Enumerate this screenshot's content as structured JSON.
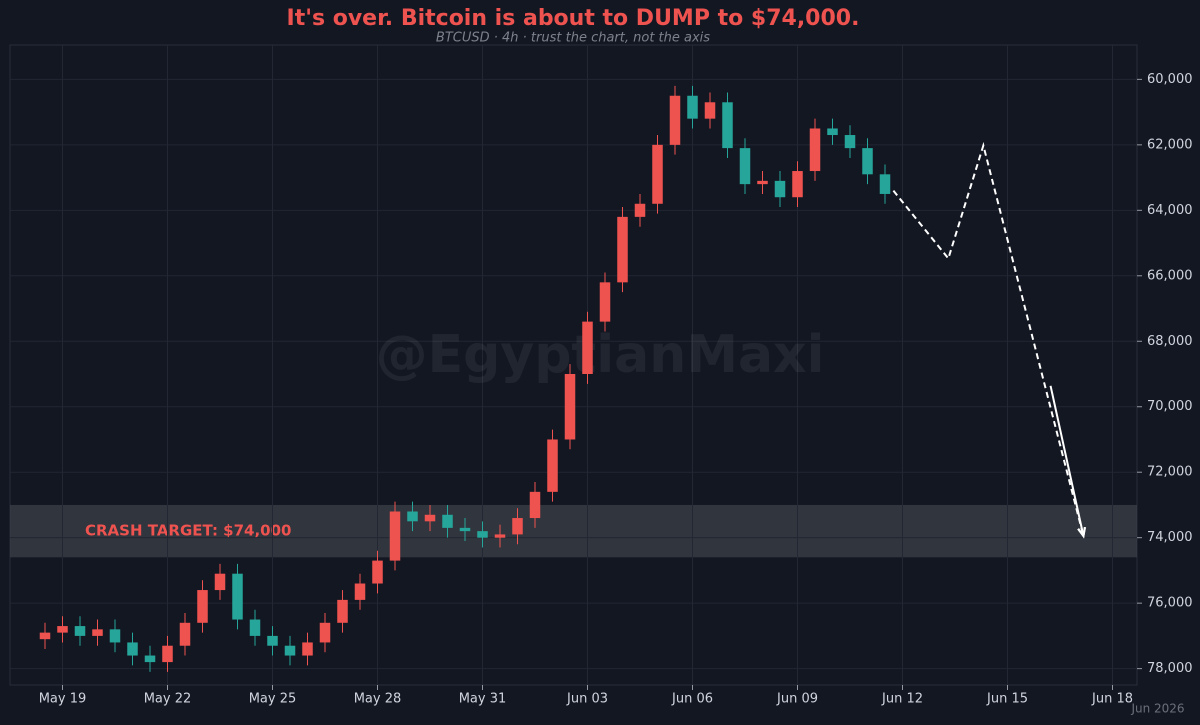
{
  "chart_data": {
    "type": "candlestick",
    "title": "It's over. Bitcoin is about to DUMP to $74,000.",
    "subtitle": "BTCUSD · 4h · trust the chart, not the axis",
    "watermark": "@EgyptianMaxi",
    "footer": "Jun 2026",
    "colors": {
      "up": "#26a69a",
      "down": "#ef5350"
    },
    "x": [
      18.5,
      19,
      19.5,
      20,
      20.5,
      21,
      21.5,
      22,
      22.5,
      23,
      23.5,
      24,
      24.5,
      25,
      25.5,
      26,
      26.5,
      27,
      27.5,
      28,
      28.5,
      29,
      29.5,
      30,
      30.5,
      31,
      31.5,
      32,
      32.5,
      33,
      33.5,
      34,
      34.5,
      35,
      35.5,
      36,
      36.5,
      37,
      37.5,
      38,
      38.5,
      39,
      39.5,
      40,
      40.5,
      41,
      41.5,
      42,
      42.5
    ],
    "open": [
      77100,
      76900,
      76700,
      77000,
      76800,
      77200,
      77600,
      77800,
      77300,
      76600,
      75600,
      75100,
      76500,
      77000,
      77300,
      77600,
      77200,
      76600,
      75900,
      75400,
      74700,
      73200,
      73500,
      73300,
      73700,
      73800,
      74000,
      73900,
      73400,
      72600,
      71000,
      69000,
      67400,
      66200,
      64200,
      63800,
      62000,
      60500,
      61200,
      60700,
      62100,
      63200,
      63100,
      63600,
      62800,
      61500,
      61700,
      62100,
      62900
    ],
    "high": [
      77400,
      77200,
      77300,
      77300,
      77500,
      77900,
      78100,
      78100,
      77600,
      76900,
      75900,
      76800,
      77300,
      77600,
      77900,
      77900,
      77500,
      76900,
      76200,
      75700,
      75000,
      73800,
      73800,
      74000,
      74100,
      74300,
      74300,
      74200,
      73700,
      72900,
      71300,
      69300,
      67700,
      66500,
      64500,
      64100,
      62300,
      61500,
      61500,
      62400,
      63500,
      63500,
      63900,
      63900,
      63100,
      62000,
      62400,
      63200,
      63800
    ],
    "low": [
      76600,
      76400,
      76400,
      76500,
      76500,
      76900,
      77300,
      77000,
      76300,
      75300,
      74800,
      74800,
      76200,
      76700,
      77000,
      76900,
      76300,
      75600,
      75100,
      74400,
      72900,
      72900,
      73000,
      73000,
      73400,
      73500,
      73600,
      73100,
      72300,
      70700,
      68700,
      67100,
      65900,
      63900,
      63500,
      61700,
      60200,
      60200,
      60400,
      60400,
      61800,
      62800,
      62800,
      62500,
      61200,
      61200,
      61400,
      61800,
      62600
    ],
    "close": [
      76900,
      76700,
      77000,
      76800,
      77200,
      77600,
      77800,
      77300,
      76600,
      75600,
      75100,
      76500,
      77000,
      77300,
      77600,
      77200,
      76600,
      75900,
      75400,
      74700,
      73200,
      73500,
      73300,
      73700,
      73800,
      74000,
      73900,
      73400,
      72600,
      71000,
      69000,
      67400,
      66200,
      64200,
      63800,
      62000,
      60500,
      61200,
      60700,
      62100,
      63200,
      63100,
      63600,
      62800,
      61500,
      61700,
      62100,
      62900,
      63500
    ],
    "target_band": {
      "label": "CRASH TARGET: $74,000",
      "range": [
        73000,
        74600
      ],
      "color": "#3a3d45"
    },
    "projection": {
      "x": [
        42.74,
        44.31,
        45.31,
        48.17
      ],
      "y": [
        63400,
        65470,
        62020,
        73950
      ],
      "color": "#ffffff"
    },
    "projection_solid": {
      "x": [
        47.23,
        48.17
      ],
      "y": [
        69360,
        73950
      ],
      "color": "#ffffff"
    },
    "xlim": [
      17.5,
      49.7
    ],
    "ylim": [
      78500,
      58950
    ],
    "xticks": [
      {
        "value": 19,
        "label": "May 19"
      },
      {
        "value": 22,
        "label": "May 22"
      },
      {
        "value": 25,
        "label": "May 25"
      },
      {
        "value": 28,
        "label": "May 28"
      },
      {
        "value": 31,
        "label": "May 31"
      },
      {
        "value": 34,
        "label": "Jun 03"
      },
      {
        "value": 37,
        "label": "Jun 06"
      },
      {
        "value": 40,
        "label": "Jun 09"
      },
      {
        "value": 43,
        "label": "Jun 12"
      },
      {
        "value": 46,
        "label": "Jun 15"
      },
      {
        "value": 49,
        "label": "Jun 18"
      }
    ],
    "yticks": [
      {
        "value": 60000,
        "label": "60,000"
      },
      {
        "value": 62000,
        "label": "62,000"
      },
      {
        "value": 64000,
        "label": "64,000"
      },
      {
        "value": 66000,
        "label": "66,000"
      },
      {
        "value": 68000,
        "label": "68,000"
      },
      {
        "value": 70000,
        "label": "70,000"
      },
      {
        "value": 72000,
        "label": "72,000"
      },
      {
        "value": 74000,
        "label": "74,000"
      },
      {
        "value": 76000,
        "label": "76,000"
      },
      {
        "value": 78000,
        "label": "78,000"
      }
    ],
    "grid": true
  }
}
